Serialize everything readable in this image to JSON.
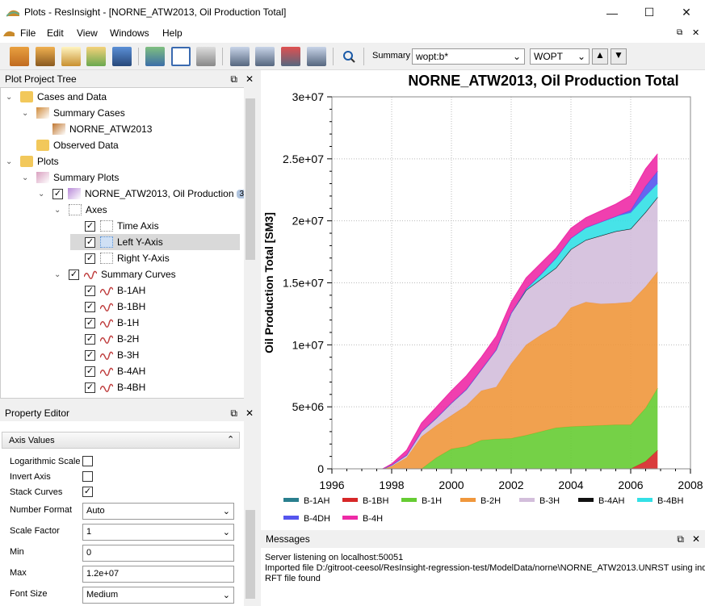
{
  "window": {
    "title": "Plots - ResInsight - [NORNE_ATW2013, Oil Production Total]",
    "min": "—",
    "max": "☐",
    "close": "✕"
  },
  "menu": [
    "File",
    "Edit",
    "View",
    "Windows",
    "Help"
  ],
  "toolbar": {
    "summary_label": "Summary",
    "summary_value": "wopt:b*",
    "vector_value": "WOPT"
  },
  "tree": {
    "title": "Plot Project Tree",
    "rows": [
      {
        "label": "Cases and Data",
        "level": 0,
        "arrow": "v",
        "icon": "folder",
        "check": null
      },
      {
        "label": "Summary Cases",
        "level": 1,
        "arrow": "v",
        "icon": "cases",
        "check": null
      },
      {
        "label": "NORNE_ATW2013",
        "level": 2,
        "arrow": "",
        "icon": "case",
        "check": null
      },
      {
        "label": "Observed Data",
        "level": 1,
        "arrow": "",
        "icon": "folder",
        "check": null
      },
      {
        "label": "Plots",
        "level": 0,
        "arrow": "v",
        "icon": "folder",
        "check": null
      },
      {
        "label": "Summary Plots",
        "level": 1,
        "arrow": "v",
        "icon": "plots",
        "check": null
      },
      {
        "label": "NORNE_ATW2013, Oil Production",
        "level": 2,
        "arrow": "v",
        "icon": "plot",
        "check": true,
        "badge": "3"
      },
      {
        "label": "Axes",
        "level": 3,
        "arrow": "v",
        "icon": "axes",
        "check": null
      },
      {
        "label": "Time Axis",
        "level": 4,
        "arrow": "",
        "icon": "axis",
        "check": true
      },
      {
        "label": "Left Y-Axis",
        "level": 4,
        "arrow": "",
        "icon": "axis-sel",
        "check": true,
        "selected": true
      },
      {
        "label": "Right Y-Axis",
        "level": 4,
        "arrow": "",
        "icon": "axis",
        "check": true
      },
      {
        "label": "Summary Curves",
        "level": 3,
        "arrow": "v",
        "icon": "curves",
        "check": true
      },
      {
        "label": "B-1AH",
        "level": 4,
        "arrow": "",
        "icon": "curve",
        "check": true
      },
      {
        "label": "B-1BH",
        "level": 4,
        "arrow": "",
        "icon": "curve",
        "check": true
      },
      {
        "label": "B-1H",
        "level": 4,
        "arrow": "",
        "icon": "curve",
        "check": true
      },
      {
        "label": "B-2H",
        "level": 4,
        "arrow": "",
        "icon": "curve",
        "check": true
      },
      {
        "label": "B-3H",
        "level": 4,
        "arrow": "",
        "icon": "curve",
        "check": true
      },
      {
        "label": "B-4AH",
        "level": 4,
        "arrow": "",
        "icon": "curve",
        "check": true
      },
      {
        "label": "B-4BH",
        "level": 4,
        "arrow": "",
        "icon": "curve",
        "check": true
      }
    ]
  },
  "props": {
    "title": "Property Editor",
    "group": "Axis Values",
    "items": [
      {
        "label": "Logarithmic Scale",
        "type": "check",
        "value": false
      },
      {
        "label": "Invert Axis",
        "type": "check",
        "value": false
      },
      {
        "label": "Stack Curves",
        "type": "check",
        "value": true
      },
      {
        "label": "Number Format",
        "type": "select",
        "value": "Auto"
      },
      {
        "label": "Scale Factor",
        "type": "select",
        "value": "1"
      },
      {
        "label": "Min",
        "type": "text",
        "value": "0"
      },
      {
        "label": "Max",
        "type": "text",
        "value": "1.2e+07"
      },
      {
        "label": "Font Size",
        "type": "select",
        "value": "Medium"
      }
    ]
  },
  "chart_data": {
    "type": "area",
    "title": "NORNE_ATW2013, Oil Production Total",
    "ylabel": "Oil Production Total [SM3]",
    "xlim": [
      1996,
      2008
    ],
    "ylim": [
      0,
      30000000
    ],
    "xticks": [
      "1996",
      "1998",
      "2000",
      "2002",
      "2004",
      "2006",
      "2008"
    ],
    "yticks": [
      "0",
      "5e+06",
      "1e+07",
      "1.5e+07",
      "2e+07",
      "2.5e+07",
      "3e+07"
    ],
    "x": [
      1997.7,
      1998,
      1998.5,
      1999,
      1999.5,
      2000,
      2000.5,
      2001,
      2001.5,
      2002,
      2002.5,
      2003,
      2003.5,
      2004,
      2004.5,
      2005,
      2005.5,
      2006,
      2006.5,
      2006.9
    ],
    "stacked": true,
    "series": [
      {
        "name": "B-1AH",
        "color": "#2a7f8e",
        "values": [
          0,
          0,
          0,
          0,
          0,
          0,
          0,
          0,
          0,
          0,
          0,
          0,
          0,
          0,
          0,
          0,
          0,
          0,
          0,
          0
        ]
      },
      {
        "name": "B-1BH",
        "color": "#d62728",
        "values": [
          0,
          0,
          0,
          0,
          0,
          0,
          0,
          0,
          0,
          0,
          0,
          0,
          0,
          0,
          0,
          0,
          0,
          0,
          600000,
          1500000
        ]
      },
      {
        "name": "B-1H",
        "color": "#66cc33",
        "values": [
          0,
          0,
          0,
          0,
          900000,
          1600000,
          1800000,
          2300000,
          2400000,
          2450000,
          2700000,
          3000000,
          3300000,
          3400000,
          3450000,
          3500000,
          3550000,
          3550000,
          4300000,
          5000000
        ]
      },
      {
        "name": "B-2H",
        "color": "#f0973c",
        "values": [
          0,
          200000,
          900000,
          2600000,
          2600000,
          2700000,
          3300000,
          4000000,
          4200000,
          6000000,
          7300000,
          7800000,
          8200000,
          9600000,
          10000000,
          9800000,
          9800000,
          9900000,
          9800000,
          9400000
        ]
      },
      {
        "name": "B-3H",
        "color": "#d3bedb",
        "values": [
          0,
          100000,
          200000,
          400000,
          600000,
          1000000,
          1300000,
          1700000,
          3000000,
          4100000,
          4400000,
          4500000,
          4700000,
          4700000,
          5000000,
          5500000,
          5800000,
          5900000,
          6000000,
          6000000
        ]
      },
      {
        "name": "B-4AH",
        "color": "#111111",
        "values": [
          0,
          0,
          0,
          0,
          0,
          0,
          0,
          0,
          0,
          0,
          0,
          0,
          0,
          0,
          0,
          0,
          0,
          0,
          0,
          0
        ]
      },
      {
        "name": "B-4BH",
        "color": "#33e0e6",
        "values": [
          0,
          0,
          0,
          0,
          0,
          0,
          0,
          0,
          0,
          0,
          100000,
          400000,
          800000,
          900000,
          1000000,
          1100000,
          1200000,
          1300000,
          1300000,
          1100000
        ]
      },
      {
        "name": "B-4DH",
        "color": "#5555ee",
        "values": [
          0,
          0,
          0,
          0,
          0,
          0,
          0,
          0,
          0,
          0,
          0,
          0,
          0,
          0,
          0,
          0,
          0,
          200000,
          800000,
          1000000
        ]
      },
      {
        "name": "B-4H",
        "color": "#ee2aa6",
        "values": [
          0,
          100000,
          400000,
          700000,
          900000,
          1000000,
          1100000,
          1000000,
          1100000,
          900000,
          900000,
          900000,
          800000,
          800000,
          800000,
          900000,
          1000000,
          1200000,
          1400000,
          1400000
        ]
      }
    ]
  },
  "messages": {
    "title": "Messages",
    "lines": [
      "Server listening on localhost:50051",
      "Imported file D:/gitroot-ceesol/ResInsight-regression-test/ModelData/norne\\NORNE_ATW2013.UNRST using inde",
      "RFT file found"
    ]
  }
}
